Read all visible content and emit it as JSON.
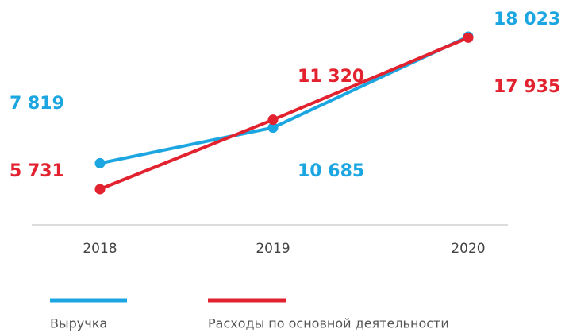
{
  "chart_data": {
    "type": "line",
    "categories": [
      "2018",
      "2019",
      "2020"
    ],
    "series": [
      {
        "name": "Выручка",
        "color": "#1ba6e1",
        "values": [
          7819,
          10685,
          18023
        ],
        "value_labels": [
          "7 819",
          "10 685",
          "18 023"
        ]
      },
      {
        "name": "Расходы по основной деятельности",
        "color": "#e2222e",
        "values": [
          5731,
          11320,
          17935
        ],
        "value_labels": [
          "5 731",
          "11 320",
          "17 935"
        ]
      }
    ]
  }
}
